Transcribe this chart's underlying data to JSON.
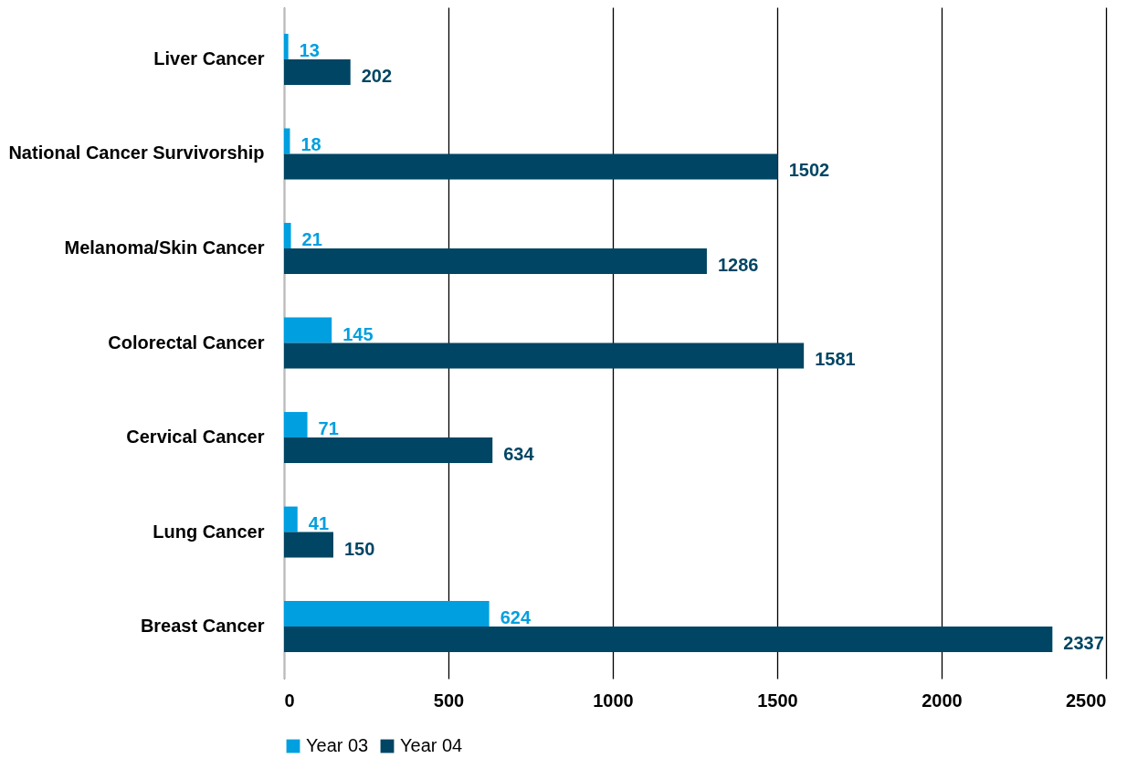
{
  "chart_data": {
    "type": "bar",
    "orientation": "horizontal",
    "categories": [
      "Liver Cancer",
      "National Cancer Survivorship",
      "Melanoma/Skin Cancer",
      "Colorectal Cancer",
      "Cervical Cancer",
      "Lung Cancer",
      "Breast Cancer"
    ],
    "series": [
      {
        "name": "Year 03",
        "color": "#009fdf",
        "values": [
          13,
          18,
          21,
          145,
          71,
          41,
          624
        ]
      },
      {
        "name": "Year 04",
        "color": "#004563",
        "values": [
          202,
          1502,
          1286,
          1581,
          634,
          150,
          2337
        ]
      }
    ],
    "xlim": [
      0,
      2500
    ],
    "xticks": [
      0,
      500,
      1000,
      1500,
      2000,
      2500
    ],
    "grid": "x",
    "legend": "bottom",
    "data_labels": true
  }
}
